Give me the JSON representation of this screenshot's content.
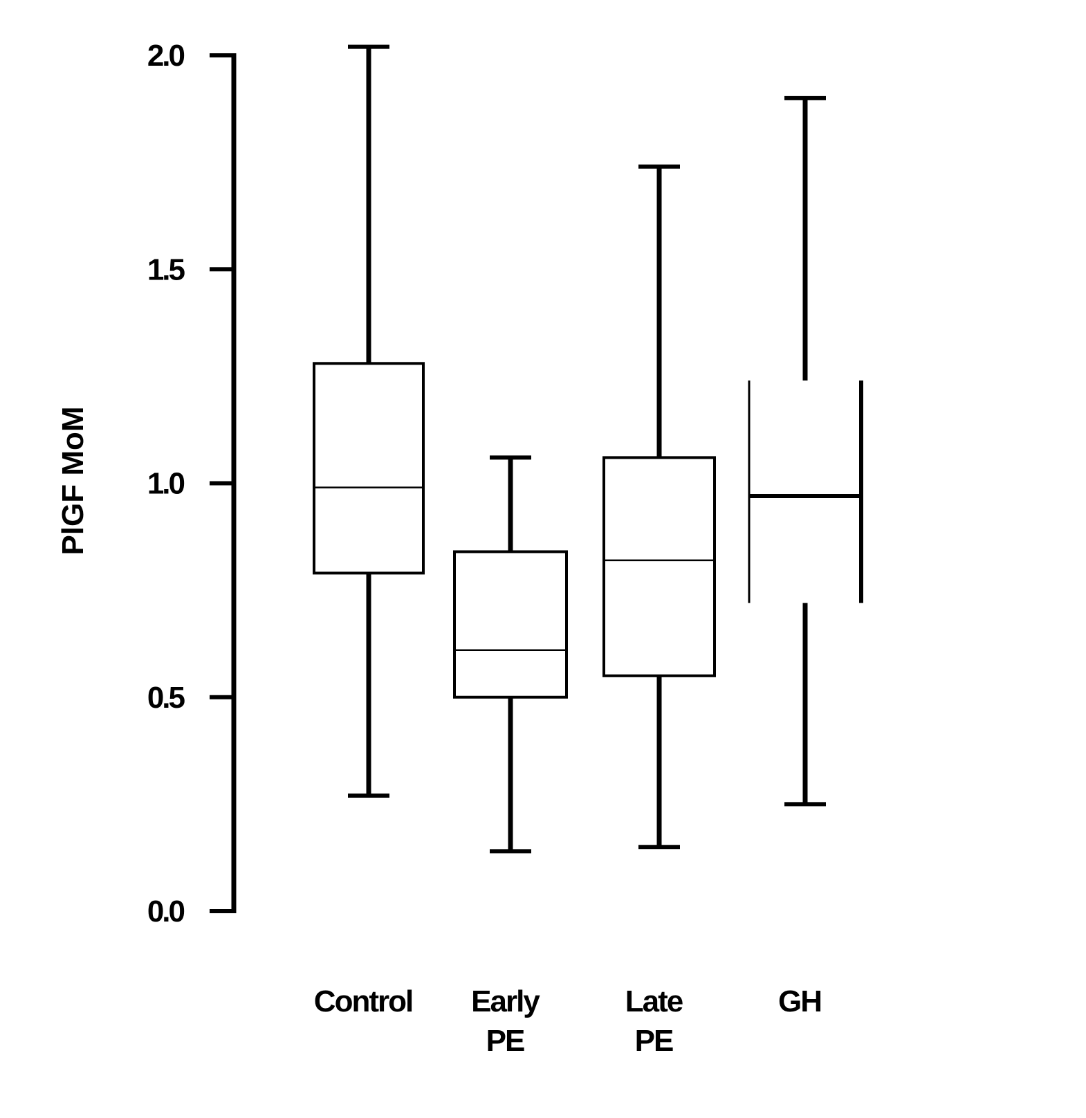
{
  "chart_data": {
    "type": "box",
    "title": "",
    "xlabel": "",
    "ylabel": "PlGF MoM",
    "ylim": [
      0,
      2.0
    ],
    "yticks": [
      "0.0",
      "0.5",
      "1.0",
      "1.5",
      "2.0"
    ],
    "ytick_values": [
      0,
      0.5,
      1.0,
      1.5,
      2.0
    ],
    "grid": false,
    "categories": [
      {
        "label_lines": [
          "Control"
        ],
        "whisker_low": 0.27,
        "q1": 0.79,
        "median": 0.99,
        "q3": 1.28,
        "whisker_high": 2.02
      },
      {
        "label_lines": [
          "Early",
          "PE"
        ],
        "whisker_low": 0.14,
        "q1": 0.5,
        "median": 0.61,
        "q3": 0.84,
        "whisker_high": 1.06
      },
      {
        "label_lines": [
          "Late",
          "PE"
        ],
        "whisker_low": 0.15,
        "q1": 0.55,
        "median": 0.82,
        "q3": 1.06,
        "whisker_high": 1.74
      },
      {
        "label_lines": [
          "GH"
        ],
        "whisker_low": 0.25,
        "q1": 0.72,
        "median": 0.97,
        "q3": 1.24,
        "whisker_high": 1.9,
        "open_box": true
      }
    ]
  }
}
